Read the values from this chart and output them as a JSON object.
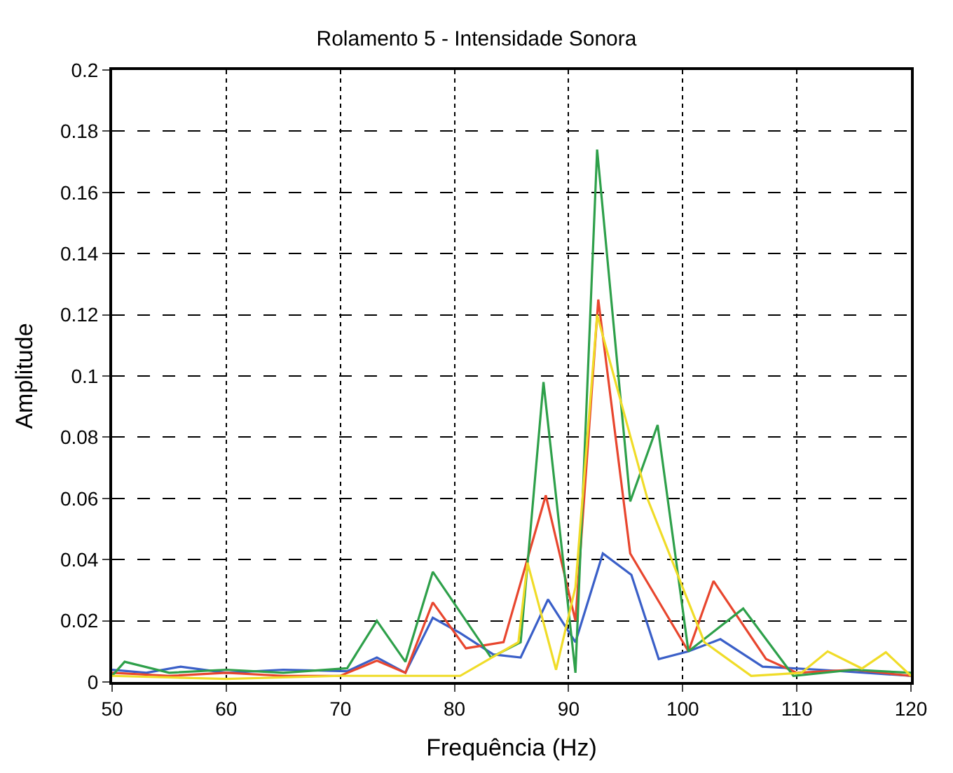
{
  "chart_data": {
    "type": "line",
    "title": "Rolamento 5 - Intensidade Sonora",
    "xlabel": "Frequência (Hz)",
    "ylabel": "Amplitude",
    "xlim": [
      50,
      120
    ],
    "xticks": [
      50,
      60,
      70,
      80,
      90,
      100,
      110,
      120
    ],
    "ylim": [
      0,
      0.2
    ],
    "yticks": [
      0,
      0.02,
      0.04,
      0.06,
      0.08,
      0.1,
      0.12,
      0.14,
      0.16,
      0.18,
      0.2
    ],
    "grid": true,
    "line_style": "solid",
    "marker": "none",
    "series": [
      {
        "color": "#3a5fc8",
        "x": [
          50,
          53,
          56,
          60,
          65,
          70.6,
          73.2,
          75.7,
          78.1,
          80.5,
          83.4,
          85.8,
          88.2,
          90.6,
          93,
          95.5,
          97.9,
          100.5,
          103.3,
          107,
          112,
          116,
          120
        ],
        "values": [
          0.004,
          0.003,
          0.005,
          0.003,
          0.004,
          0.0035,
          0.008,
          0.003,
          0.021,
          0.016,
          0.009,
          0.008,
          0.027,
          0.013,
          0.042,
          0.035,
          0.0075,
          0.01,
          0.014,
          0.005,
          0.004,
          0.003,
          0.002
        ]
      },
      {
        "color": "#e8462e",
        "x": [
          50,
          55,
          60,
          65,
          70,
          73.2,
          75.7,
          78.1,
          81,
          84.3,
          88,
          90.6,
          92.6,
          95.4,
          100.5,
          102.7,
          107.3,
          110,
          115,
          120
        ],
        "values": [
          0.003,
          0.002,
          0.003,
          0.002,
          0.002,
          0.007,
          0.003,
          0.026,
          0.011,
          0.013,
          0.061,
          0.02,
          0.125,
          0.042,
          0.01,
          0.033,
          0.0075,
          0.003,
          0.004,
          0.002
        ]
      },
      {
        "color": "#2ea04a",
        "x": [
          50,
          51.1,
          55,
          60,
          65,
          70.6,
          73.2,
          75.7,
          78.1,
          83.2,
          85.8,
          87.8,
          90.6,
          92.5,
          95.4,
          97.8,
          100.5,
          105.3,
          109.7,
          115,
          120
        ],
        "values": [
          0.002,
          0.0066,
          0.003,
          0.004,
          0.003,
          0.0045,
          0.02,
          0.0066,
          0.036,
          0.008,
          0.013,
          0.098,
          0.003,
          0.174,
          0.059,
          0.084,
          0.01,
          0.024,
          0.002,
          0.004,
          0.003
        ]
      },
      {
        "color": "#f0dc28",
        "x": [
          50,
          60,
          70,
          80.5,
          85.6,
          86.4,
          88.9,
          90.6,
          92.5,
          96.9,
          101.9,
          106,
          110.4,
          112.7,
          115.7,
          117.8,
          120
        ],
        "values": [
          0.002,
          0.001,
          0.002,
          0.002,
          0.013,
          0.039,
          0.004,
          0.031,
          0.12,
          0.06,
          0.013,
          0.002,
          0.003,
          0.01,
          0.0044,
          0.0097,
          0.002
        ]
      }
    ]
  }
}
